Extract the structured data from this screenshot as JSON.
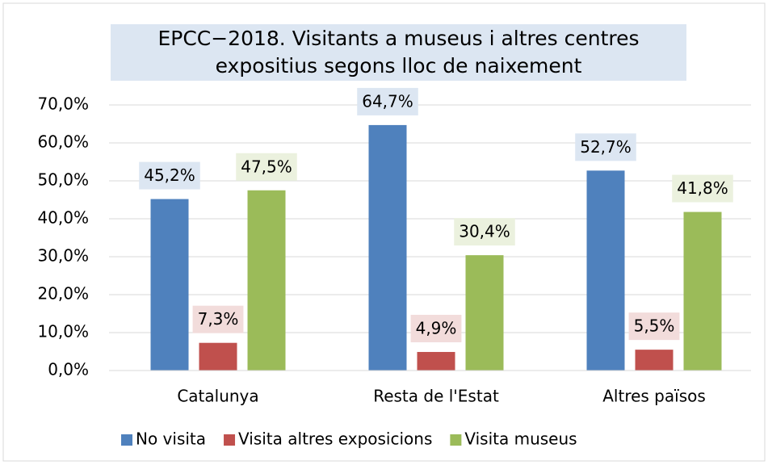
{
  "chart_data": {
    "type": "bar",
    "title": "EPCC−2018. Visitants a museus i altres centres expositius segons lloc de naixement",
    "categories": [
      "Catalunya",
      "Resta de l'Estat",
      "Altres països"
    ],
    "series": [
      {
        "name": "No visita",
        "color": "#4f81bd",
        "label_bg": "#dce6f2",
        "values": [
          45.2,
          64.7,
          52.7
        ],
        "value_labels": [
          "45,2%",
          "64,7%",
          "52,7%"
        ]
      },
      {
        "name": "Visita altres exposicions",
        "color": "#c0504d",
        "label_bg": "#f2dcdb",
        "values": [
          7.3,
          4.9,
          5.5
        ],
        "value_labels": [
          "7,3%",
          "4,9%",
          "5,5%"
        ]
      },
      {
        "name": "Visita museus",
        "color": "#9bbb59",
        "label_bg": "#ebf1de",
        "values": [
          47.5,
          30.4,
          41.8
        ],
        "value_labels": [
          "47,5%",
          "30,4%",
          "41,8%"
        ]
      }
    ],
    "ylim": [
      0,
      70
    ],
    "yticks": [
      {
        "value": 0,
        "label": "0,0%"
      },
      {
        "value": 10,
        "label": "10,0%"
      },
      {
        "value": 20,
        "label": "20,0%"
      },
      {
        "value": 30,
        "label": "30,0%"
      },
      {
        "value": 40,
        "label": "40,0%"
      },
      {
        "value": 50,
        "label": "50,0%"
      },
      {
        "value": 60,
        "label": "60,0%"
      },
      {
        "value": 70,
        "label": "70,0%"
      }
    ],
    "grid": true,
    "legend": "bottom"
  }
}
